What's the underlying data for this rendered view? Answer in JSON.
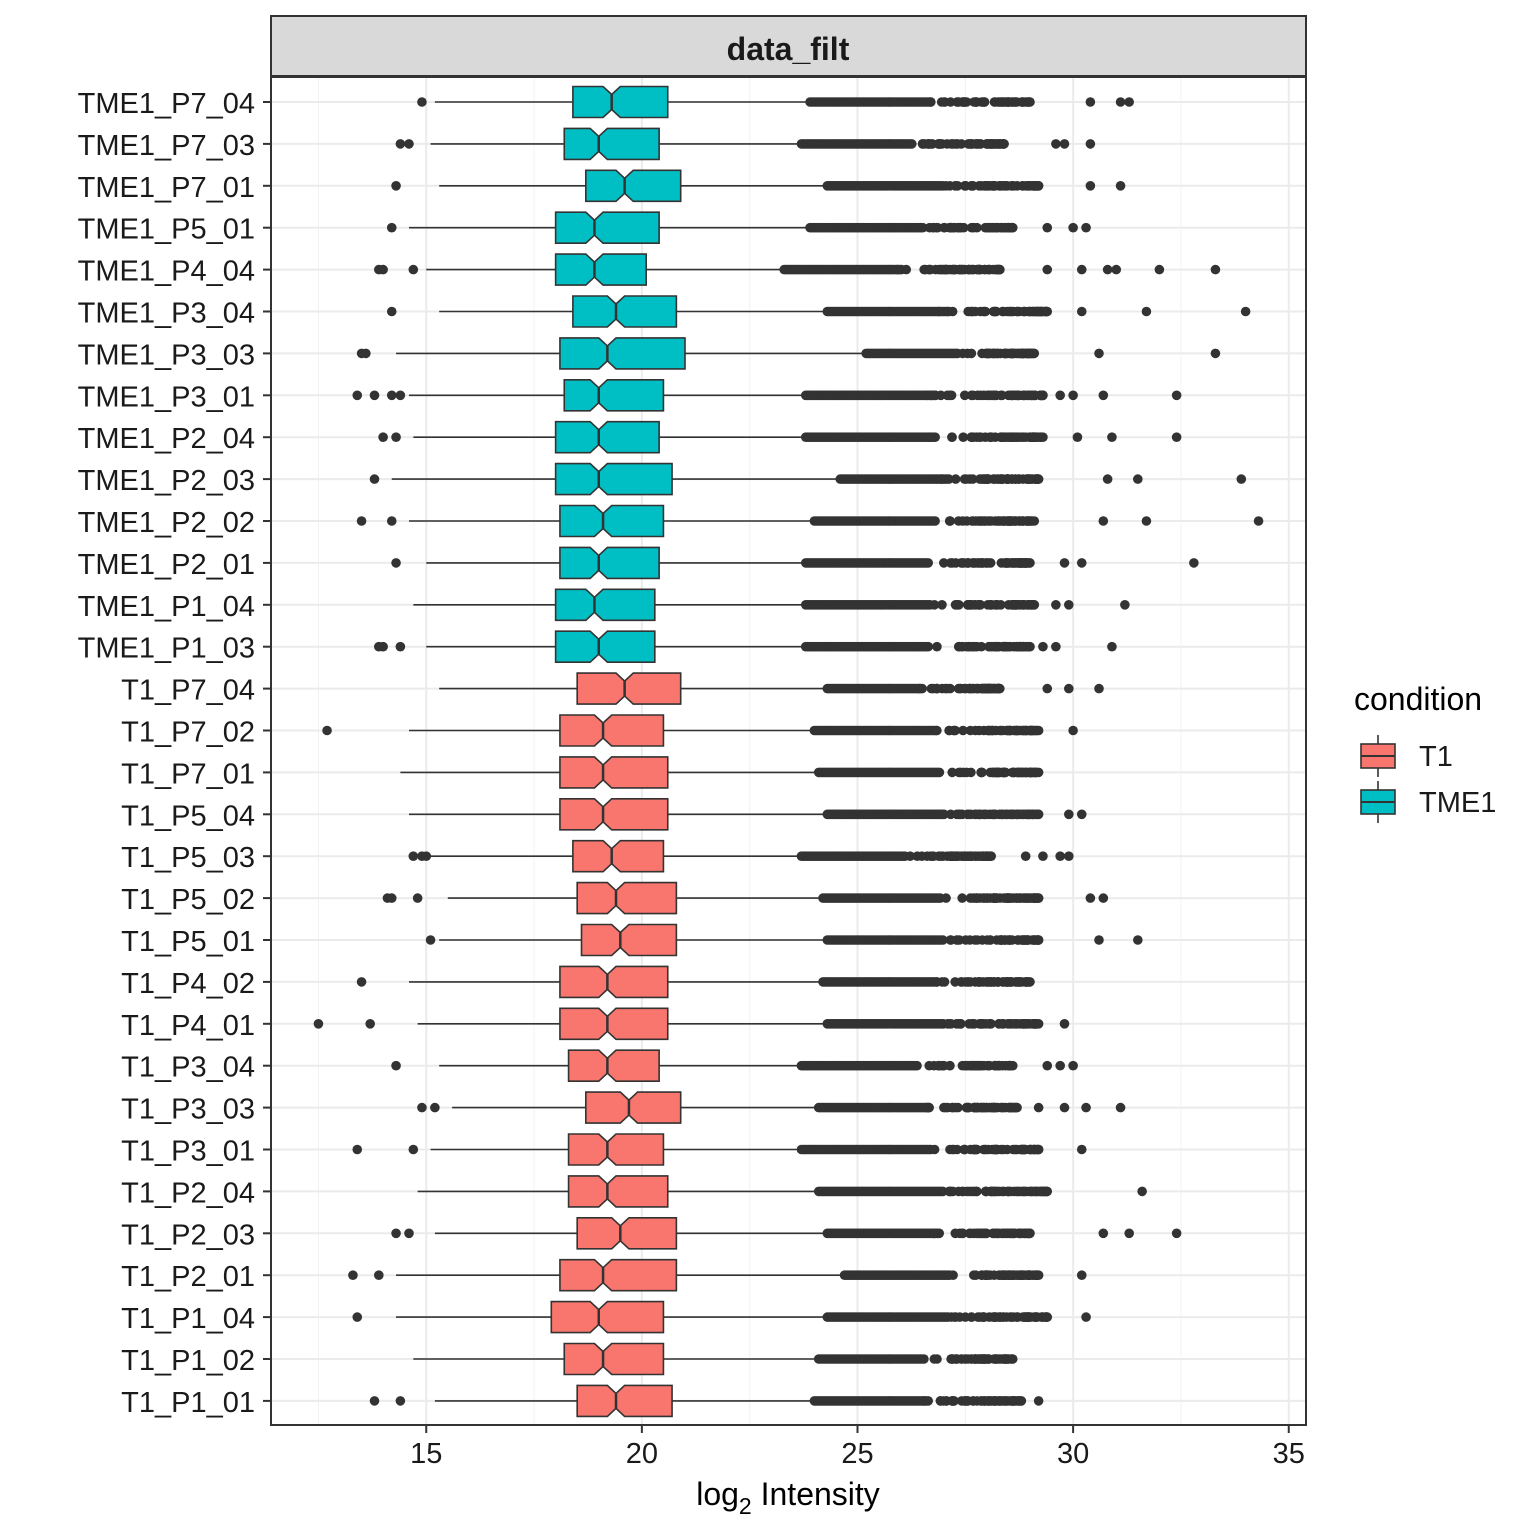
{
  "chart_data": {
    "type": "boxplot",
    "orientation": "horizontal",
    "notched": true,
    "facet_title": "data_filt",
    "xlabel": {
      "main": "log",
      "sub": "2",
      "rest": " Intensity"
    },
    "xlim": [
      11.4,
      35.4
    ],
    "x_ticks": [
      15,
      20,
      25,
      30,
      35
    ],
    "grid": true,
    "legend": {
      "title": "condition",
      "position": "right",
      "entries": [
        {
          "label": "T1",
          "color": "#F8766D"
        },
        {
          "label": "TME1",
          "color": "#00BFC4"
        }
      ]
    },
    "samples": [
      {
        "label": "TME1_P7_04",
        "condition": "TME1",
        "min": 15.2,
        "q1": 18.4,
        "median": 19.3,
        "q3": 20.6,
        "max": 23.9,
        "notch": [
          19.1,
          19.5
        ],
        "outliers_low": [
          14.9
        ],
        "outliers_high_range": [
          23.9,
          29.0
        ],
        "outliers_high_extra": [
          30.4,
          31.1,
          31.3
        ]
      },
      {
        "label": "TME1_P7_03",
        "condition": "TME1",
        "min": 15.1,
        "q1": 18.2,
        "median": 19.0,
        "q3": 20.4,
        "max": 23.7,
        "notch": [
          18.8,
          19.2
        ],
        "outliers_low": [
          14.4,
          14.6
        ],
        "outliers_high_range": [
          23.7,
          28.4
        ],
        "outliers_high_extra": [
          29.6,
          29.8,
          30.4
        ]
      },
      {
        "label": "TME1_P7_01",
        "condition": "TME1",
        "min": 15.3,
        "q1": 18.7,
        "median": 19.6,
        "q3": 20.9,
        "max": 24.3,
        "notch": [
          19.4,
          19.8
        ],
        "outliers_low": [
          14.3
        ],
        "outliers_high_range": [
          24.3,
          29.2
        ],
        "outliers_high_extra": [
          30.4,
          31.1
        ]
      },
      {
        "label": "TME1_P5_01",
        "condition": "TME1",
        "min": 14.6,
        "q1": 18.0,
        "median": 18.9,
        "q3": 20.4,
        "max": 23.9,
        "notch": [
          18.7,
          19.1
        ],
        "outliers_low": [
          14.2
        ],
        "outliers_high_range": [
          23.9,
          28.6
        ],
        "outliers_high_extra": [
          29.4,
          30.0,
          30.3
        ]
      },
      {
        "label": "TME1_P4_04",
        "condition": "TME1",
        "min": 15.0,
        "q1": 18.0,
        "median": 18.9,
        "q3": 20.1,
        "max": 23.3,
        "notch": [
          18.7,
          19.1
        ],
        "outliers_low": [
          13.9,
          14.0,
          14.7
        ],
        "outliers_high_range": [
          23.3,
          28.3
        ],
        "outliers_high_extra": [
          29.4,
          30.2,
          30.8,
          31.0,
          32.0,
          33.3
        ]
      },
      {
        "label": "TME1_P3_04",
        "condition": "TME1",
        "min": 15.3,
        "q1": 18.4,
        "median": 19.4,
        "q3": 20.8,
        "max": 24.3,
        "notch": [
          19.2,
          19.6
        ],
        "outliers_low": [
          14.2
        ],
        "outliers_high_range": [
          24.3,
          29.4
        ],
        "outliers_high_extra": [
          30.2,
          31.7,
          34.0
        ]
      },
      {
        "label": "TME1_P3_03",
        "condition": "TME1",
        "min": 14.3,
        "q1": 18.1,
        "median": 19.2,
        "q3": 21.0,
        "max": 25.2,
        "notch": [
          19.0,
          19.4
        ],
        "outliers_low": [
          13.5,
          13.6
        ],
        "outliers_high_range": [
          25.2,
          29.1
        ],
        "outliers_high_extra": [
          30.6,
          33.3
        ]
      },
      {
        "label": "TME1_P3_01",
        "condition": "TME1",
        "min": 14.6,
        "q1": 18.2,
        "median": 19.0,
        "q3": 20.5,
        "max": 23.8,
        "notch": [
          18.8,
          19.2
        ],
        "outliers_low": [
          13.4,
          13.8,
          14.2,
          14.4
        ],
        "outliers_high_range": [
          23.8,
          29.3
        ],
        "outliers_high_extra": [
          29.7,
          30.0,
          30.7,
          32.4
        ]
      },
      {
        "label": "TME1_P2_04",
        "condition": "TME1",
        "min": 14.7,
        "q1": 18.0,
        "median": 19.0,
        "q3": 20.4,
        "max": 23.8,
        "notch": [
          18.8,
          19.2
        ],
        "outliers_low": [
          14.0,
          14.3
        ],
        "outliers_high_range": [
          23.8,
          29.3
        ],
        "outliers_high_extra": [
          30.1,
          30.9,
          32.4
        ]
      },
      {
        "label": "TME1_P2_03",
        "condition": "TME1",
        "min": 14.2,
        "q1": 18.0,
        "median": 19.0,
        "q3": 20.7,
        "max": 24.6,
        "notch": [
          18.8,
          19.2
        ],
        "outliers_low": [
          13.8
        ],
        "outliers_high_range": [
          24.6,
          29.2
        ],
        "outliers_high_extra": [
          30.8,
          31.5,
          33.9
        ]
      },
      {
        "label": "TME1_P2_02",
        "condition": "TME1",
        "min": 14.6,
        "q1": 18.1,
        "median": 19.1,
        "q3": 20.5,
        "max": 24.0,
        "notch": [
          18.9,
          19.3
        ],
        "outliers_low": [
          13.5,
          14.2
        ],
        "outliers_high_range": [
          24.0,
          29.1
        ],
        "outliers_high_extra": [
          30.7,
          31.7,
          34.3
        ]
      },
      {
        "label": "TME1_P2_01",
        "condition": "TME1",
        "min": 15.0,
        "q1": 18.1,
        "median": 19.0,
        "q3": 20.4,
        "max": 23.8,
        "notch": [
          18.8,
          19.2
        ],
        "outliers_low": [
          14.3
        ],
        "outliers_high_range": [
          23.8,
          29.0
        ],
        "outliers_high_extra": [
          29.8,
          30.2,
          32.8
        ]
      },
      {
        "label": "TME1_P1_04",
        "condition": "TME1",
        "min": 14.7,
        "q1": 18.0,
        "median": 18.9,
        "q3": 20.3,
        "max": 23.8,
        "notch": [
          18.7,
          19.1
        ],
        "outliers_low": [],
        "outliers_high_range": [
          23.8,
          29.1
        ],
        "outliers_high_extra": [
          29.6,
          29.9,
          31.2
        ]
      },
      {
        "label": "TME1_P1_03",
        "condition": "TME1",
        "min": 15.0,
        "q1": 18.0,
        "median": 19.0,
        "q3": 20.3,
        "max": 23.8,
        "notch": [
          18.8,
          19.2
        ],
        "outliers_low": [
          13.9,
          14.0,
          14.4
        ],
        "outliers_high_range": [
          23.8,
          29.0
        ],
        "outliers_high_extra": [
          29.3,
          29.6,
          30.9
        ]
      },
      {
        "label": "T1_P7_04",
        "condition": "T1",
        "min": 15.3,
        "q1": 18.5,
        "median": 19.6,
        "q3": 20.9,
        "max": 24.3,
        "notch": [
          19.4,
          19.8
        ],
        "outliers_low": [],
        "outliers_high_range": [
          24.3,
          28.3
        ],
        "outliers_high_extra": [
          29.4,
          29.9,
          30.6
        ]
      },
      {
        "label": "T1_P7_02",
        "condition": "T1",
        "min": 14.6,
        "q1": 18.1,
        "median": 19.1,
        "q3": 20.5,
        "max": 24.0,
        "notch": [
          18.9,
          19.3
        ],
        "outliers_low": [
          12.7
        ],
        "outliers_high_range": [
          24.0,
          29.2
        ],
        "outliers_high_extra": [
          30.0
        ]
      },
      {
        "label": "T1_P7_01",
        "condition": "T1",
        "min": 14.4,
        "q1": 18.1,
        "median": 19.1,
        "q3": 20.6,
        "max": 24.1,
        "notch": [
          18.9,
          19.3
        ],
        "outliers_low": [],
        "outliers_high_range": [
          24.1,
          29.2
        ],
        "outliers_high_extra": []
      },
      {
        "label": "T1_P5_04",
        "condition": "T1",
        "min": 14.6,
        "q1": 18.1,
        "median": 19.1,
        "q3": 20.6,
        "max": 24.3,
        "notch": [
          18.9,
          19.3
        ],
        "outliers_low": [],
        "outliers_high_range": [
          24.3,
          29.2
        ],
        "outliers_high_extra": [
          29.9,
          30.2
        ]
      },
      {
        "label": "T1_P5_03",
        "condition": "T1",
        "min": 15.1,
        "q1": 18.4,
        "median": 19.3,
        "q3": 20.5,
        "max": 23.7,
        "notch": [
          19.1,
          19.5
        ],
        "outliers_low": [
          14.7,
          14.9,
          15.0
        ],
        "outliers_high_range": [
          23.7,
          28.1
        ],
        "outliers_high_extra": [
          28.9,
          29.3,
          29.7,
          29.9
        ]
      },
      {
        "label": "T1_P5_02",
        "condition": "T1",
        "min": 15.5,
        "q1": 18.5,
        "median": 19.4,
        "q3": 20.8,
        "max": 24.2,
        "notch": [
          19.2,
          19.6
        ],
        "outliers_low": [
          14.1,
          14.2,
          14.8
        ],
        "outliers_high_range": [
          24.2,
          29.2
        ],
        "outliers_high_extra": [
          30.4,
          30.7
        ]
      },
      {
        "label": "T1_P5_01",
        "condition": "T1",
        "min": 15.3,
        "q1": 18.6,
        "median": 19.5,
        "q3": 20.8,
        "max": 24.3,
        "notch": [
          19.3,
          19.7
        ],
        "outliers_low": [
          15.1
        ],
        "outliers_high_range": [
          24.3,
          29.2
        ],
        "outliers_high_extra": [
          30.6,
          31.5
        ]
      },
      {
        "label": "T1_P4_02",
        "condition": "T1",
        "min": 14.6,
        "q1": 18.1,
        "median": 19.2,
        "q3": 20.6,
        "max": 24.2,
        "notch": [
          19.0,
          19.4
        ],
        "outliers_low": [
          13.5
        ],
        "outliers_high_range": [
          24.2,
          29.0
        ],
        "outliers_high_extra": []
      },
      {
        "label": "T1_P4_01",
        "condition": "T1",
        "min": 14.8,
        "q1": 18.1,
        "median": 19.2,
        "q3": 20.6,
        "max": 24.3,
        "notch": [
          19.0,
          19.4
        ],
        "outliers_low": [
          12.5,
          13.7
        ],
        "outliers_high_range": [
          24.3,
          29.2
        ],
        "outliers_high_extra": [
          29.8
        ]
      },
      {
        "label": "T1_P3_04",
        "condition": "T1",
        "min": 15.3,
        "q1": 18.3,
        "median": 19.2,
        "q3": 20.4,
        "max": 23.7,
        "notch": [
          19.0,
          19.4
        ],
        "outliers_low": [
          14.3
        ],
        "outliers_high_range": [
          23.7,
          28.6
        ],
        "outliers_high_extra": [
          29.4,
          29.7,
          30.0
        ]
      },
      {
        "label": "T1_P3_03",
        "condition": "T1",
        "min": 15.6,
        "q1": 18.7,
        "median": 19.7,
        "q3": 20.9,
        "max": 24.1,
        "notch": [
          19.5,
          19.9
        ],
        "outliers_low": [
          14.9,
          15.2
        ],
        "outliers_high_range": [
          24.1,
          28.7
        ],
        "outliers_high_extra": [
          29.2,
          29.8,
          30.3,
          31.1
        ]
      },
      {
        "label": "T1_P3_01",
        "condition": "T1",
        "min": 15.1,
        "q1": 18.3,
        "median": 19.2,
        "q3": 20.5,
        "max": 23.7,
        "notch": [
          19.0,
          19.4
        ],
        "outliers_low": [
          13.4,
          14.7
        ],
        "outliers_high_range": [
          23.7,
          29.2
        ],
        "outliers_high_extra": [
          30.2
        ]
      },
      {
        "label": "T1_P2_04",
        "condition": "T1",
        "min": 14.8,
        "q1": 18.3,
        "median": 19.2,
        "q3": 20.6,
        "max": 24.1,
        "notch": [
          19.0,
          19.4
        ],
        "outliers_low": [],
        "outliers_high_range": [
          24.1,
          29.4
        ],
        "outliers_high_extra": [
          31.6
        ]
      },
      {
        "label": "T1_P2_03",
        "condition": "T1",
        "min": 15.2,
        "q1": 18.5,
        "median": 19.5,
        "q3": 20.8,
        "max": 24.3,
        "notch": [
          19.3,
          19.7
        ],
        "outliers_low": [
          14.3,
          14.6
        ],
        "outliers_high_range": [
          24.3,
          29.0
        ],
        "outliers_high_extra": [
          30.7,
          31.3,
          32.4
        ]
      },
      {
        "label": "T1_P2_01",
        "condition": "T1",
        "min": 14.3,
        "q1": 18.1,
        "median": 19.1,
        "q3": 20.8,
        "max": 24.7,
        "notch": [
          18.9,
          19.3
        ],
        "outliers_low": [
          13.3,
          13.9
        ],
        "outliers_high_range": [
          24.7,
          29.2
        ],
        "outliers_high_extra": [
          30.2
        ]
      },
      {
        "label": "T1_P1_04",
        "condition": "T1",
        "min": 14.3,
        "q1": 17.9,
        "median": 19.0,
        "q3": 20.5,
        "max": 24.3,
        "notch": [
          18.8,
          19.2
        ],
        "outliers_low": [
          13.4
        ],
        "outliers_high_range": [
          24.3,
          29.4
        ],
        "outliers_high_extra": [
          30.3
        ]
      },
      {
        "label": "T1_P1_02",
        "condition": "T1",
        "min": 14.7,
        "q1": 18.2,
        "median": 19.1,
        "q3": 20.5,
        "max": 24.1,
        "notch": [
          18.9,
          19.3
        ],
        "outliers_low": [],
        "outliers_high_range": [
          24.1,
          28.6
        ],
        "outliers_high_extra": []
      },
      {
        "label": "T1_P1_01",
        "condition": "T1",
        "min": 15.2,
        "q1": 18.5,
        "median": 19.4,
        "q3": 20.7,
        "max": 24.0,
        "notch": [
          19.2,
          19.6
        ],
        "outliers_low": [
          13.8,
          14.4
        ],
        "outliers_high_range": [
          24.0,
          28.8
        ],
        "outliers_high_extra": [
          29.2
        ]
      }
    ]
  }
}
